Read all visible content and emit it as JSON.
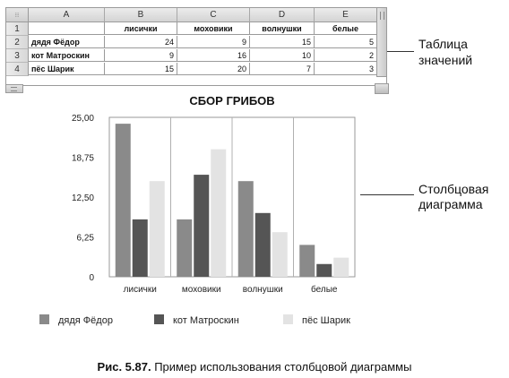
{
  "spreadsheet": {
    "columns": [
      "A",
      "B",
      "C",
      "D",
      "E"
    ],
    "rows": [
      "1",
      "2",
      "3",
      "4"
    ],
    "header_row": [
      "",
      "лисички",
      "моховики",
      "волнушки",
      "белые"
    ],
    "data_rows": [
      {
        "label": "дядя Фёдор",
        "values": [
          "24",
          "9",
          "15",
          "5"
        ]
      },
      {
        "label": "кот Матроскин",
        "values": [
          "9",
          "16",
          "10",
          "2"
        ]
      },
      {
        "label": "пёс Шарик",
        "values": [
          "15",
          "20",
          "7",
          "3"
        ]
      }
    ]
  },
  "callouts": {
    "table_line1": "Таблица",
    "table_line2": "значений",
    "chart_line1": "Столбцовая",
    "chart_line2": "диаграмма"
  },
  "caption": {
    "label": "Рис. 5.87.",
    "text": " Пример использования столбцовой диаграммы"
  },
  "colors": {
    "series": [
      "#8a8a8a",
      "#555555",
      "#e3e3e3"
    ],
    "gridline": "#b0b0b0"
  },
  "chart_data": {
    "type": "bar",
    "title": "СБОР ГРИБОВ",
    "categories": [
      "лисички",
      "моховики",
      "волнушки",
      "белые"
    ],
    "series": [
      {
        "name": "дядя Фёдор",
        "values": [
          24,
          9,
          15,
          5
        ]
      },
      {
        "name": "кот Матроскин",
        "values": [
          9,
          16,
          10,
          2
        ]
      },
      {
        "name": "пёс Шарик",
        "values": [
          15,
          20,
          7,
          3
        ]
      }
    ],
    "ylim": [
      0,
      25
    ],
    "yticks": [
      "0",
      "6,25",
      "12,50",
      "18,75",
      "25,00"
    ],
    "ytick_values": [
      0,
      6.25,
      12.5,
      18.75,
      25
    ],
    "xlabel": "",
    "ylabel": "",
    "grid": true,
    "legend": "bottom"
  }
}
